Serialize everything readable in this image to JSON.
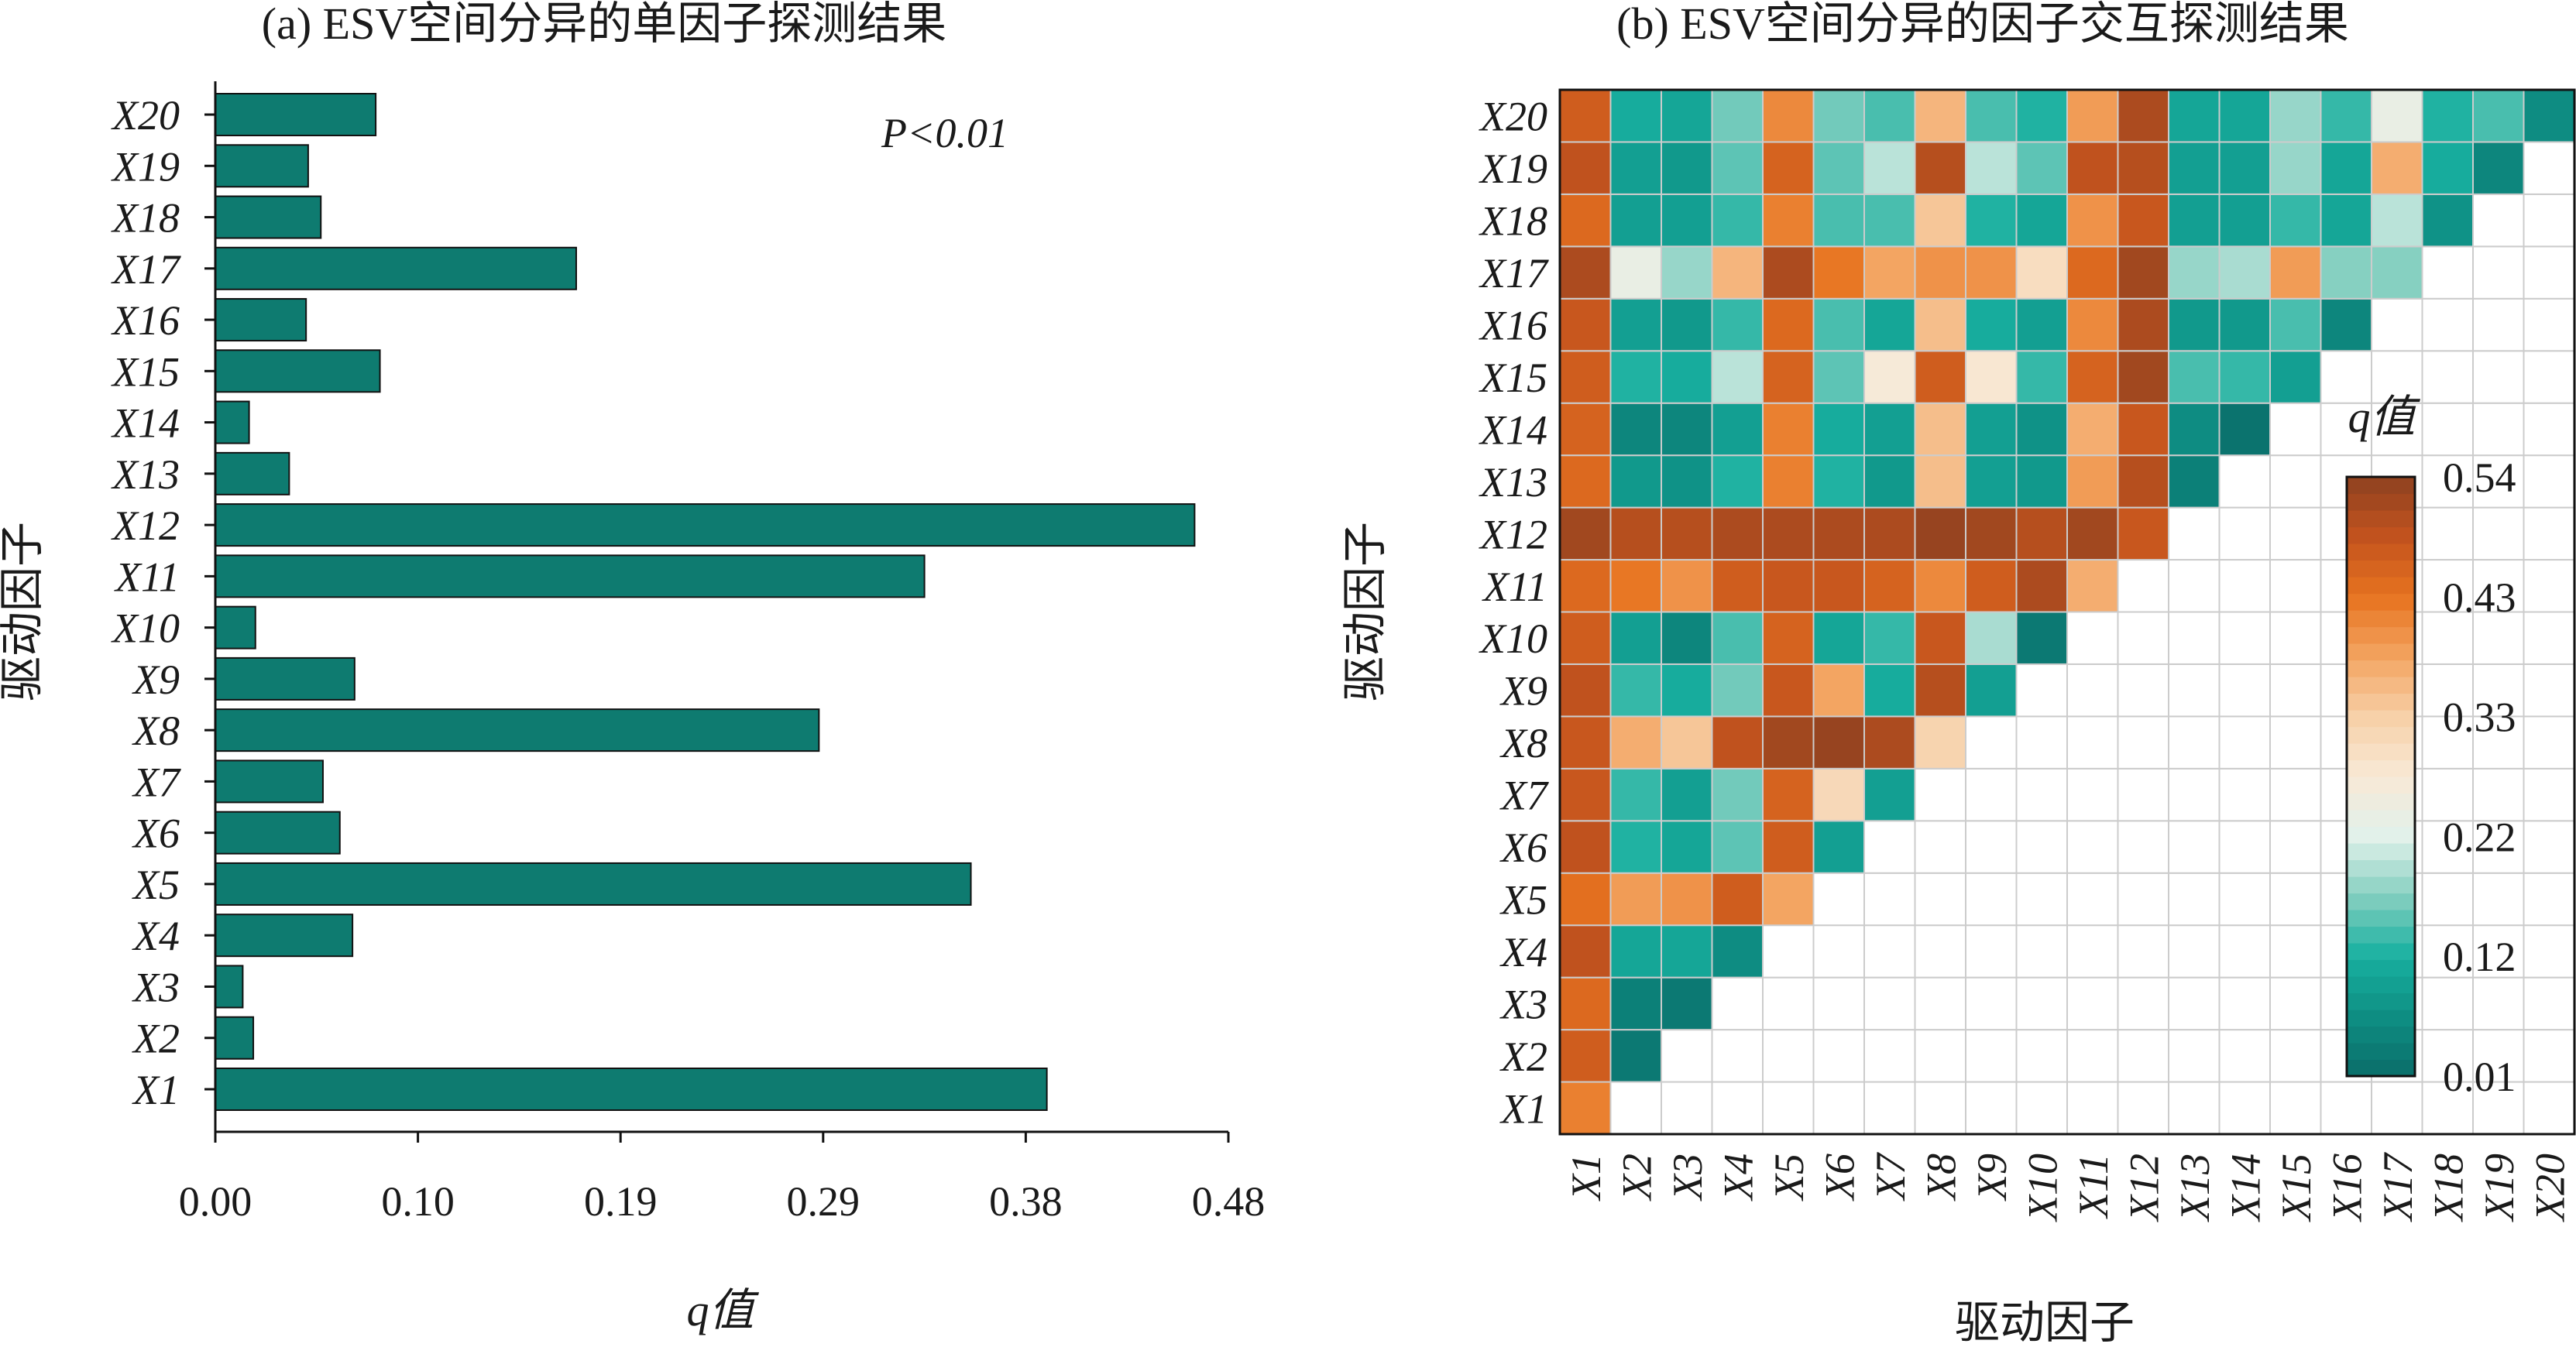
{
  "colors": {
    "bar": "#0E7B70",
    "palette": [
      "#0A6D69",
      "#0E8E83",
      "#18B0A0",
      "#84CFC0",
      "#E1F1EB",
      "#F8E9D6",
      "#F7D0A8",
      "#F3A461",
      "#E7731F",
      "#C3531E",
      "#8D4120"
    ]
  },
  "chart_data": [
    {
      "type": "bar",
      "orientation": "horizontal",
      "title": "(a) ESV空间分异的单因子探测结果",
      "annotation": "P<0.01",
      "xlabel": "q值",
      "ylabel": "驱动因子",
      "categories": [
        "X1",
        "X2",
        "X3",
        "X4",
        "X5",
        "X6",
        "X7",
        "X8",
        "X9",
        "X10",
        "X11",
        "X12",
        "X13",
        "X14",
        "X15",
        "X16",
        "X17",
        "X18",
        "X19",
        "X20"
      ],
      "values": [
        0.394,
        0.018,
        0.013,
        0.065,
        0.358,
        0.059,
        0.051,
        0.286,
        0.066,
        0.019,
        0.336,
        0.464,
        0.035,
        0.016,
        0.078,
        0.043,
        0.171,
        0.05,
        0.044,
        0.076
      ],
      "xticks": [
        "0.00",
        "0.10",
        "0.19",
        "0.29",
        "0.38",
        "0.48"
      ],
      "xlim": [
        0,
        0.48
      ]
    },
    {
      "type": "heatmap",
      "title": "(b) ESV空间分异的因子交互探测结果",
      "xlabel": "驱动因子",
      "ylabel": "驱动因子",
      "categories": [
        "X1",
        "X2",
        "X3",
        "X4",
        "X5",
        "X6",
        "X7",
        "X8",
        "X9",
        "X10",
        "X11",
        "X12",
        "X13",
        "X14",
        "X15",
        "X16",
        "X17",
        "X18",
        "X19",
        "X20"
      ],
      "colorbar_title": "q值",
      "colorbar_ticks": [
        "0.01",
        "0.12",
        "0.22",
        "0.33",
        "0.43",
        "0.54"
      ],
      "vmin": 0.01,
      "vmax": 0.54,
      "rows": [
        [
          0.42
        ],
        [
          0.47,
          0.03
        ],
        [
          0.45,
          0.04,
          0.03
        ],
        [
          0.49,
          0.1,
          0.1,
          0.06
        ],
        [
          0.44,
          0.39,
          0.4,
          0.47,
          0.38
        ],
        [
          0.49,
          0.12,
          0.1,
          0.15,
          0.47,
          0.09
        ],
        [
          0.48,
          0.13,
          0.09,
          0.16,
          0.46,
          0.31,
          0.09
        ],
        [
          0.48,
          0.37,
          0.34,
          0.49,
          0.52,
          0.53,
          0.51,
          0.32
        ],
        [
          0.49,
          0.13,
          0.11,
          0.16,
          0.48,
          0.38,
          0.11,
          0.5,
          0.09
        ],
        [
          0.47,
          0.09,
          0.05,
          0.14,
          0.46,
          0.1,
          0.13,
          0.48,
          0.19,
          0.03
        ],
        [
          0.45,
          0.43,
          0.4,
          0.47,
          0.48,
          0.48,
          0.46,
          0.41,
          0.47,
          0.51,
          0.37
        ],
        [
          0.52,
          0.5,
          0.5,
          0.51,
          0.51,
          0.51,
          0.51,
          0.53,
          0.52,
          0.5,
          0.52,
          0.48
        ],
        [
          0.45,
          0.08,
          0.07,
          0.12,
          0.42,
          0.12,
          0.08,
          0.35,
          0.09,
          0.08,
          0.39,
          0.5,
          0.04
        ],
        [
          0.46,
          0.05,
          0.05,
          0.09,
          0.42,
          0.11,
          0.09,
          0.35,
          0.09,
          0.07,
          0.37,
          0.48,
          0.06,
          0.02
        ],
        [
          0.47,
          0.12,
          0.11,
          0.2,
          0.46,
          0.15,
          0.27,
          0.47,
          0.28,
          0.13,
          0.46,
          0.52,
          0.14,
          0.13,
          0.09
        ],
        [
          0.48,
          0.09,
          0.08,
          0.13,
          0.45,
          0.14,
          0.1,
          0.35,
          0.11,
          0.09,
          0.41,
          0.51,
          0.08,
          0.08,
          0.14,
          0.05
        ],
        [
          0.51,
          0.24,
          0.18,
          0.36,
          0.51,
          0.43,
          0.38,
          0.4,
          0.4,
          0.3,
          0.45,
          0.52,
          0.18,
          0.19,
          0.39,
          0.17,
          0.17
        ],
        [
          0.45,
          0.09,
          0.09,
          0.13,
          0.42,
          0.14,
          0.14,
          0.34,
          0.12,
          0.1,
          0.4,
          0.48,
          0.09,
          0.09,
          0.13,
          0.1,
          0.2,
          0.07
        ],
        [
          0.49,
          0.09,
          0.08,
          0.15,
          0.46,
          0.15,
          0.2,
          0.5,
          0.2,
          0.15,
          0.49,
          0.5,
          0.09,
          0.09,
          0.18,
          0.1,
          0.37,
          0.11,
          0.05
        ],
        [
          0.47,
          0.11,
          0.1,
          0.16,
          0.41,
          0.16,
          0.14,
          0.36,
          0.14,
          0.12,
          0.39,
          0.51,
          0.1,
          0.1,
          0.18,
          0.13,
          0.24,
          0.12,
          0.14,
          0.06
        ]
      ]
    }
  ]
}
